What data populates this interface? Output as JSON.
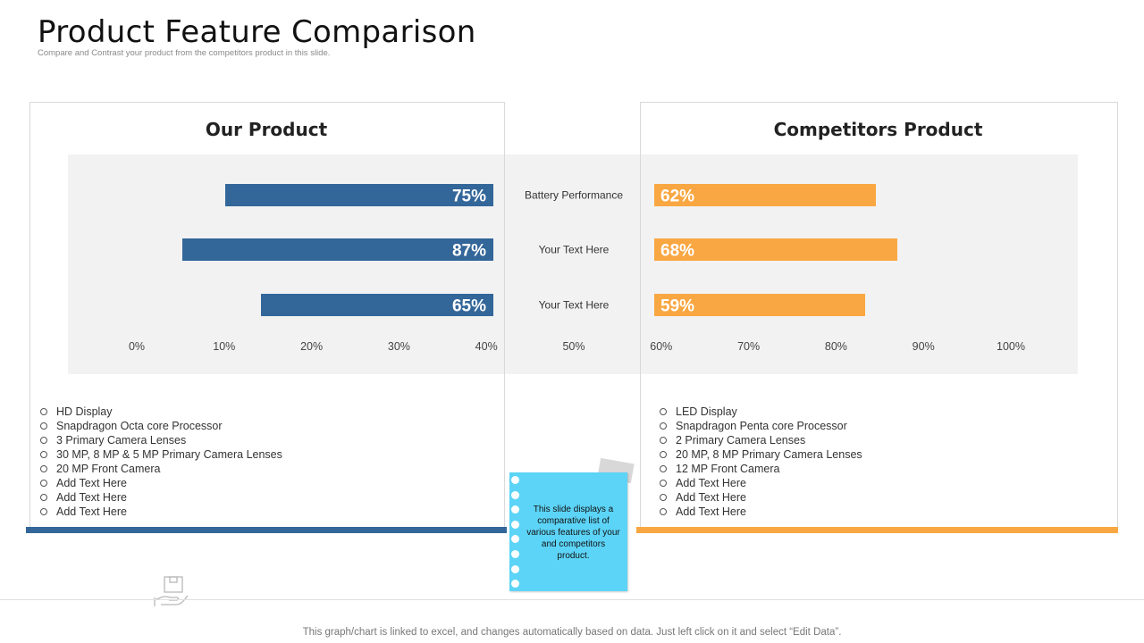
{
  "slide": {
    "title": "Product Feature Comparison",
    "subtitle": "Compare and Contrast your product from the competitors product in this slide."
  },
  "panels": {
    "left_heading": "Our Product",
    "right_heading": "Competitors Product"
  },
  "chart_data": {
    "type": "bar",
    "orientation": "horizontal-butterfly",
    "categories": [
      "Battery Performance",
      "Your Text Here",
      "Your Text Here"
    ],
    "series": [
      {
        "name": "Our Product",
        "values": [
          75,
          87,
          65
        ],
        "labels": [
          "75%",
          "87%",
          "65%"
        ],
        "color": "#336699"
      },
      {
        "name": "Competitors Product",
        "values": [
          62,
          68,
          59
        ],
        "labels": [
          "62%",
          "68%",
          "59%"
        ],
        "color": "#f9a742"
      }
    ],
    "xticks": [
      "0%",
      "10%",
      "20%",
      "30%",
      "40%",
      "50%",
      "60%",
      "70%",
      "80%",
      "90%",
      "100%"
    ],
    "xlim": [
      0,
      100
    ],
    "title": "",
    "xlabel": "",
    "ylabel": ""
  },
  "lists": {
    "our_product": [
      "HD Display",
      "Snapdragon  Octa core Processor",
      "3 Primary Camera Lenses",
      "30 MP, 8 MP & 5 MP Primary Camera Lenses",
      "20 MP Front Camera",
      "Add Text Here",
      "Add Text Here",
      "Add Text Here"
    ],
    "competitors": [
      "LED Display",
      "Snapdragon  Penta core Processor",
      "2 Primary Camera Lenses",
      "20 MP, 8 MP Primary Camera Lenses",
      "12 MP Front Camera",
      "Add Text Here",
      "Add Text Here",
      "Add Text Here"
    ]
  },
  "note": {
    "text": "This slide displays a comparative list of various features of your and competitors product."
  },
  "footer": {
    "text": "This graph/chart is linked to excel,  and changes automatically based on data. Just left click on it and select “Edit Data”."
  },
  "colors": {
    "our": "#336699",
    "competitor": "#f9a742",
    "note": "#5cd4f7"
  },
  "icons": {
    "hand_box": "hand-holding-box-icon"
  }
}
